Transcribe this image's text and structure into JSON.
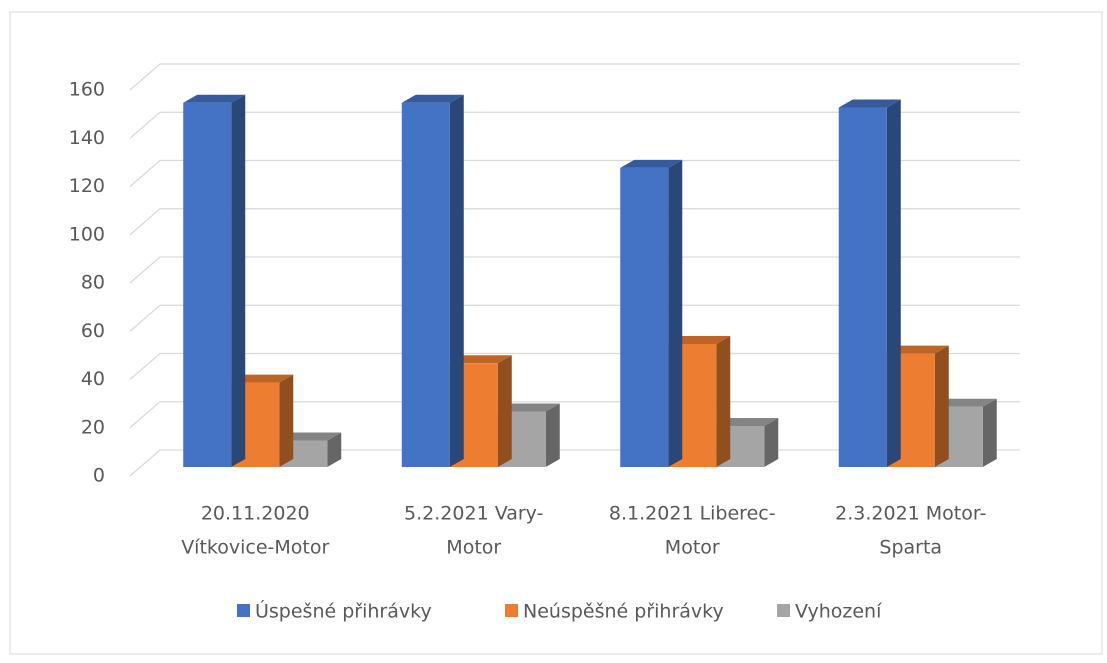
{
  "chart_data": {
    "type": "bar3d",
    "categories": [
      [
        "20.11.2020",
        "Vítkovice-Motor"
      ],
      [
        "5.2.2021 Vary-",
        "Motor"
      ],
      [
        "8.1.2021 Liberec-",
        "Motor"
      ],
      [
        "2.3.2021 Motor-",
        "Sparta"
      ]
    ],
    "series": [
      {
        "name": "Úspešné přihrávky",
        "color": "#4472c4",
        "values": [
          151,
          151,
          124,
          149
        ]
      },
      {
        "name": "Neúspěšné přihrávky",
        "color": "#ed7d31",
        "values": [
          35,
          43,
          51,
          47
        ]
      },
      {
        "name": "Vyhození",
        "color": "#a5a5a5",
        "values": [
          11,
          23,
          17,
          25
        ]
      }
    ],
    "ylim": [
      0,
      160
    ],
    "yticks": [
      0,
      20,
      40,
      60,
      80,
      100,
      120,
      140,
      160
    ],
    "grid": true,
    "legend": "bottom"
  }
}
